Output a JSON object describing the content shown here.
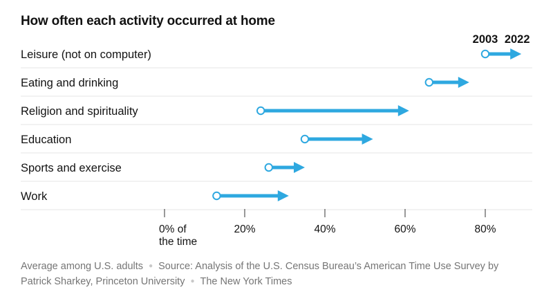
{
  "chart_data": {
    "type": "dumbbell-arrow",
    "title": "How often each activity occurred at home",
    "legend": {
      "start_label": "2003",
      "end_label": "2022",
      "placement": "top-right"
    },
    "categories": [
      "Leisure (not on computer)",
      "Eating and drinking",
      "Religion and spirituality",
      "Education",
      "Sports and exercise",
      "Work"
    ],
    "series": [
      {
        "name": "2003",
        "values": [
          80,
          66,
          24,
          35,
          26,
          13
        ]
      },
      {
        "name": "2022",
        "values": [
          89,
          76,
          61,
          52,
          35,
          31
        ]
      }
    ],
    "xlim": [
      0,
      90
    ],
    "x_ticks": [
      {
        "value": 0,
        "line1": "0% of",
        "line2": "the time"
      },
      {
        "value": 20,
        "line1": "20%",
        "line2": ""
      },
      {
        "value": 40,
        "line1": "40%",
        "line2": ""
      },
      {
        "value": 60,
        "line1": "60%",
        "line2": ""
      },
      {
        "value": 80,
        "line1": "80%",
        "line2": ""
      }
    ],
    "colors": {
      "arrow": "#2ea8e0",
      "text": "#121212",
      "gridline": "#e6e6e6",
      "muted": "#757575"
    }
  },
  "footer": {
    "note": "Average among U.S. adults",
    "source": "Source: Analysis of the U.S. Census Bureau’s American Time Use Survey by Patrick Sharkey, Princeton University",
    "credit": "The New York Times"
  }
}
